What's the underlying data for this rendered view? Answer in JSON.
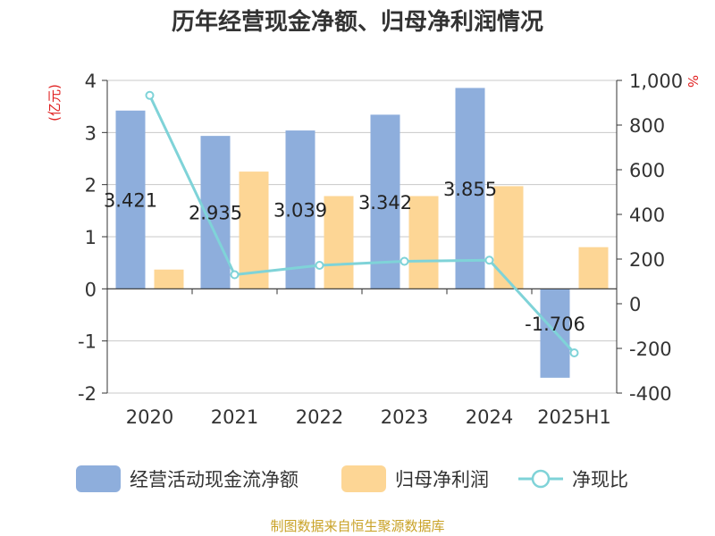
{
  "title": "历年经营现金净额、归母净利润情况",
  "source": "制图数据来自恒生聚源数据库",
  "colors": {
    "cash": "#8eaedc",
    "profit": "#fdd695",
    "ratio": "#7fd3d8",
    "unit": "#e02020"
  },
  "chart_data": {
    "type": "bar",
    "categories": [
      "2020",
      "2021",
      "2022",
      "2023",
      "2024",
      "2025H1"
    ],
    "y_left": {
      "label": "(亿元)",
      "ylim": [
        -2,
        4
      ],
      "ticks": [
        "-2",
        "-1",
        "0",
        "1",
        "2",
        "3",
        "4"
      ]
    },
    "y_right": {
      "label": "%",
      "ylim": [
        -400,
        1000
      ],
      "ticks": [
        "-400",
        "-200",
        "0",
        "200",
        "400",
        "600",
        "800",
        "1,000"
      ]
    },
    "grid": true,
    "legend_position": "bottom",
    "series": [
      {
        "name": "经营活动现金流净额",
        "type": "bar",
        "axis": "left",
        "values": [
          3.421,
          2.935,
          3.039,
          3.342,
          3.855,
          -1.706
        ],
        "labels": [
          "3.421",
          "2.935",
          "3.039",
          "3.342",
          "3.855",
          "-1.706"
        ]
      },
      {
        "name": "归母净利润",
        "type": "bar",
        "axis": "left",
        "values": [
          0.37,
          2.25,
          1.78,
          1.78,
          1.97,
          0.8
        ]
      },
      {
        "name": "净现比",
        "type": "line",
        "axis": "right",
        "values": [
          933,
          130,
          172,
          190,
          195,
          -220
        ]
      }
    ]
  }
}
